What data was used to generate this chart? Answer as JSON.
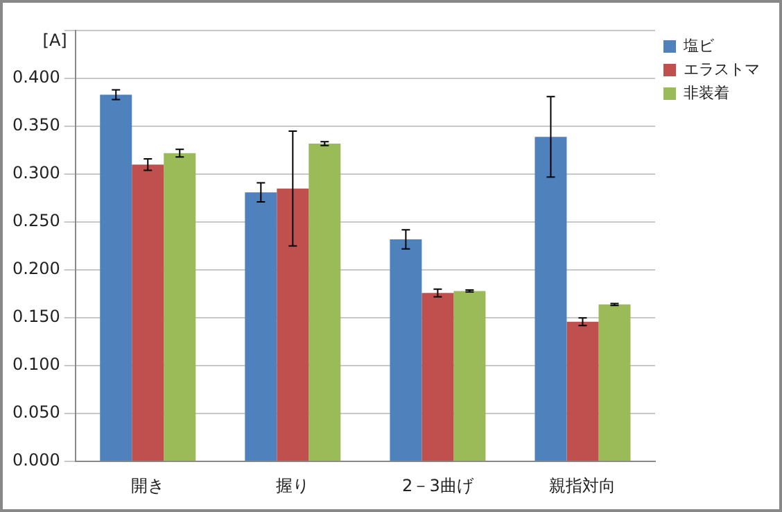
{
  "chart_data": {
    "type": "bar",
    "ylabel": "[A]",
    "categories": [
      "開き",
      "握り",
      "2－3曲げ",
      "親指対向"
    ],
    "series": [
      {
        "name": "塩ビ",
        "color": "#4f81bd",
        "values": [
          0.383,
          0.281,
          0.232,
          0.339
        ],
        "errors": [
          0.005,
          0.01,
          0.01,
          0.042
        ]
      },
      {
        "name": "エラストマ",
        "color": "#c0504d",
        "values": [
          0.31,
          0.285,
          0.176,
          0.146
        ],
        "errors": [
          0.006,
          0.06,
          0.004,
          0.004
        ]
      },
      {
        "name": "非装着",
        "color": "#9bbb59",
        "values": [
          0.322,
          0.332,
          0.178,
          0.164
        ],
        "errors": [
          0.004,
          0.002,
          0.001,
          0.001
        ]
      }
    ],
    "ylim": [
      0,
      0.45
    ],
    "yticks": [
      {
        "value": 0,
        "label": "0.000"
      },
      {
        "value": 0.05,
        "label": "0.050"
      },
      {
        "value": 0.1,
        "label": "0.100"
      },
      {
        "value": 0.15,
        "label": "0.150"
      },
      {
        "value": 0.2,
        "label": "0.200"
      },
      {
        "value": 0.25,
        "label": "0.250"
      },
      {
        "value": 0.3,
        "label": "0.300"
      },
      {
        "value": 0.35,
        "label": "0.350"
      },
      {
        "value": 0.4,
        "label": "0.400"
      },
      {
        "value": 0.45,
        "label": null
      }
    ],
    "grid": "y",
    "legend": "top right"
  }
}
